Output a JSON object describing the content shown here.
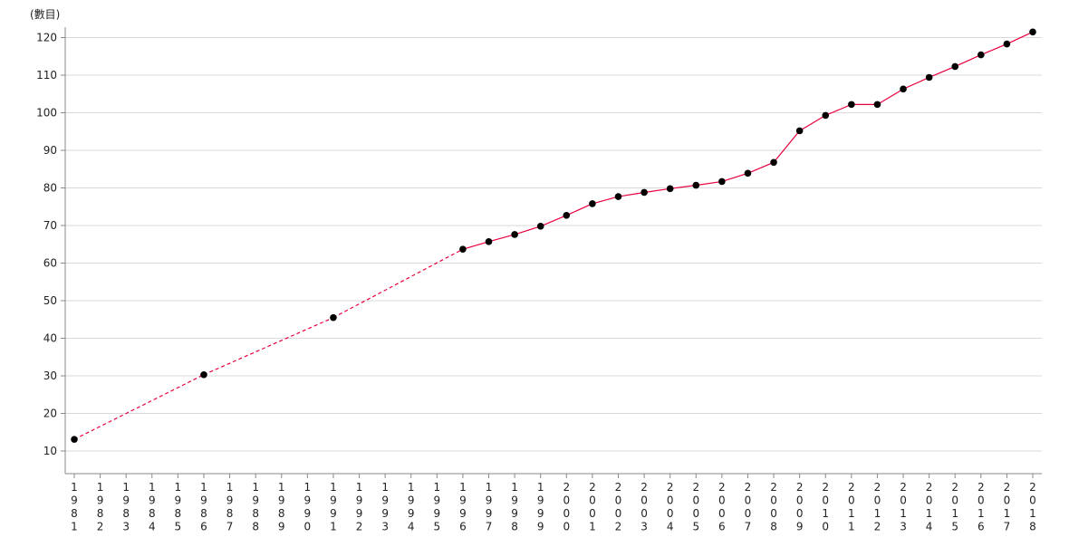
{
  "chart_data": {
    "type": "line",
    "title": "",
    "ylabel": "(數目)",
    "xlabel": "",
    "ylim": [
      4,
      123
    ],
    "yticks": [
      10,
      20,
      30,
      40,
      50,
      60,
      70,
      80,
      90,
      100,
      110,
      120
    ],
    "grid": true,
    "categories": [
      "1981",
      "1982",
      "1983",
      "1984",
      "1985",
      "1986",
      "1987",
      "1988",
      "1989",
      "1990",
      "1991",
      "1992",
      "1993",
      "1994",
      "1995",
      "1996",
      "1997",
      "1998",
      "1999",
      "2000",
      "2001",
      "2002",
      "2003",
      "2004",
      "2005",
      "2006",
      "2007",
      "2008",
      "2009",
      "2010",
      "2011",
      "2012",
      "2013",
      "2014",
      "2015",
      "2016",
      "2017",
      "2018"
    ],
    "series": [
      {
        "values": [
          13.1,
          null,
          null,
          null,
          null,
          30.3,
          null,
          null,
          null,
          null,
          45.5,
          null,
          null,
          null,
          null,
          63.7,
          65.7,
          67.6,
          69.8,
          72.7,
          75.8,
          77.7,
          78.8,
          79.8,
          80.7,
          81.7,
          83.9,
          86.8,
          95.2,
          99.3,
          102.2,
          102.2,
          106.3,
          109.4,
          112.3,
          115.4,
          118.3,
          121.5
        ],
        "line_color": "#e8003d",
        "marker_color": "#000000",
        "gap_style": "dashed"
      }
    ]
  }
}
